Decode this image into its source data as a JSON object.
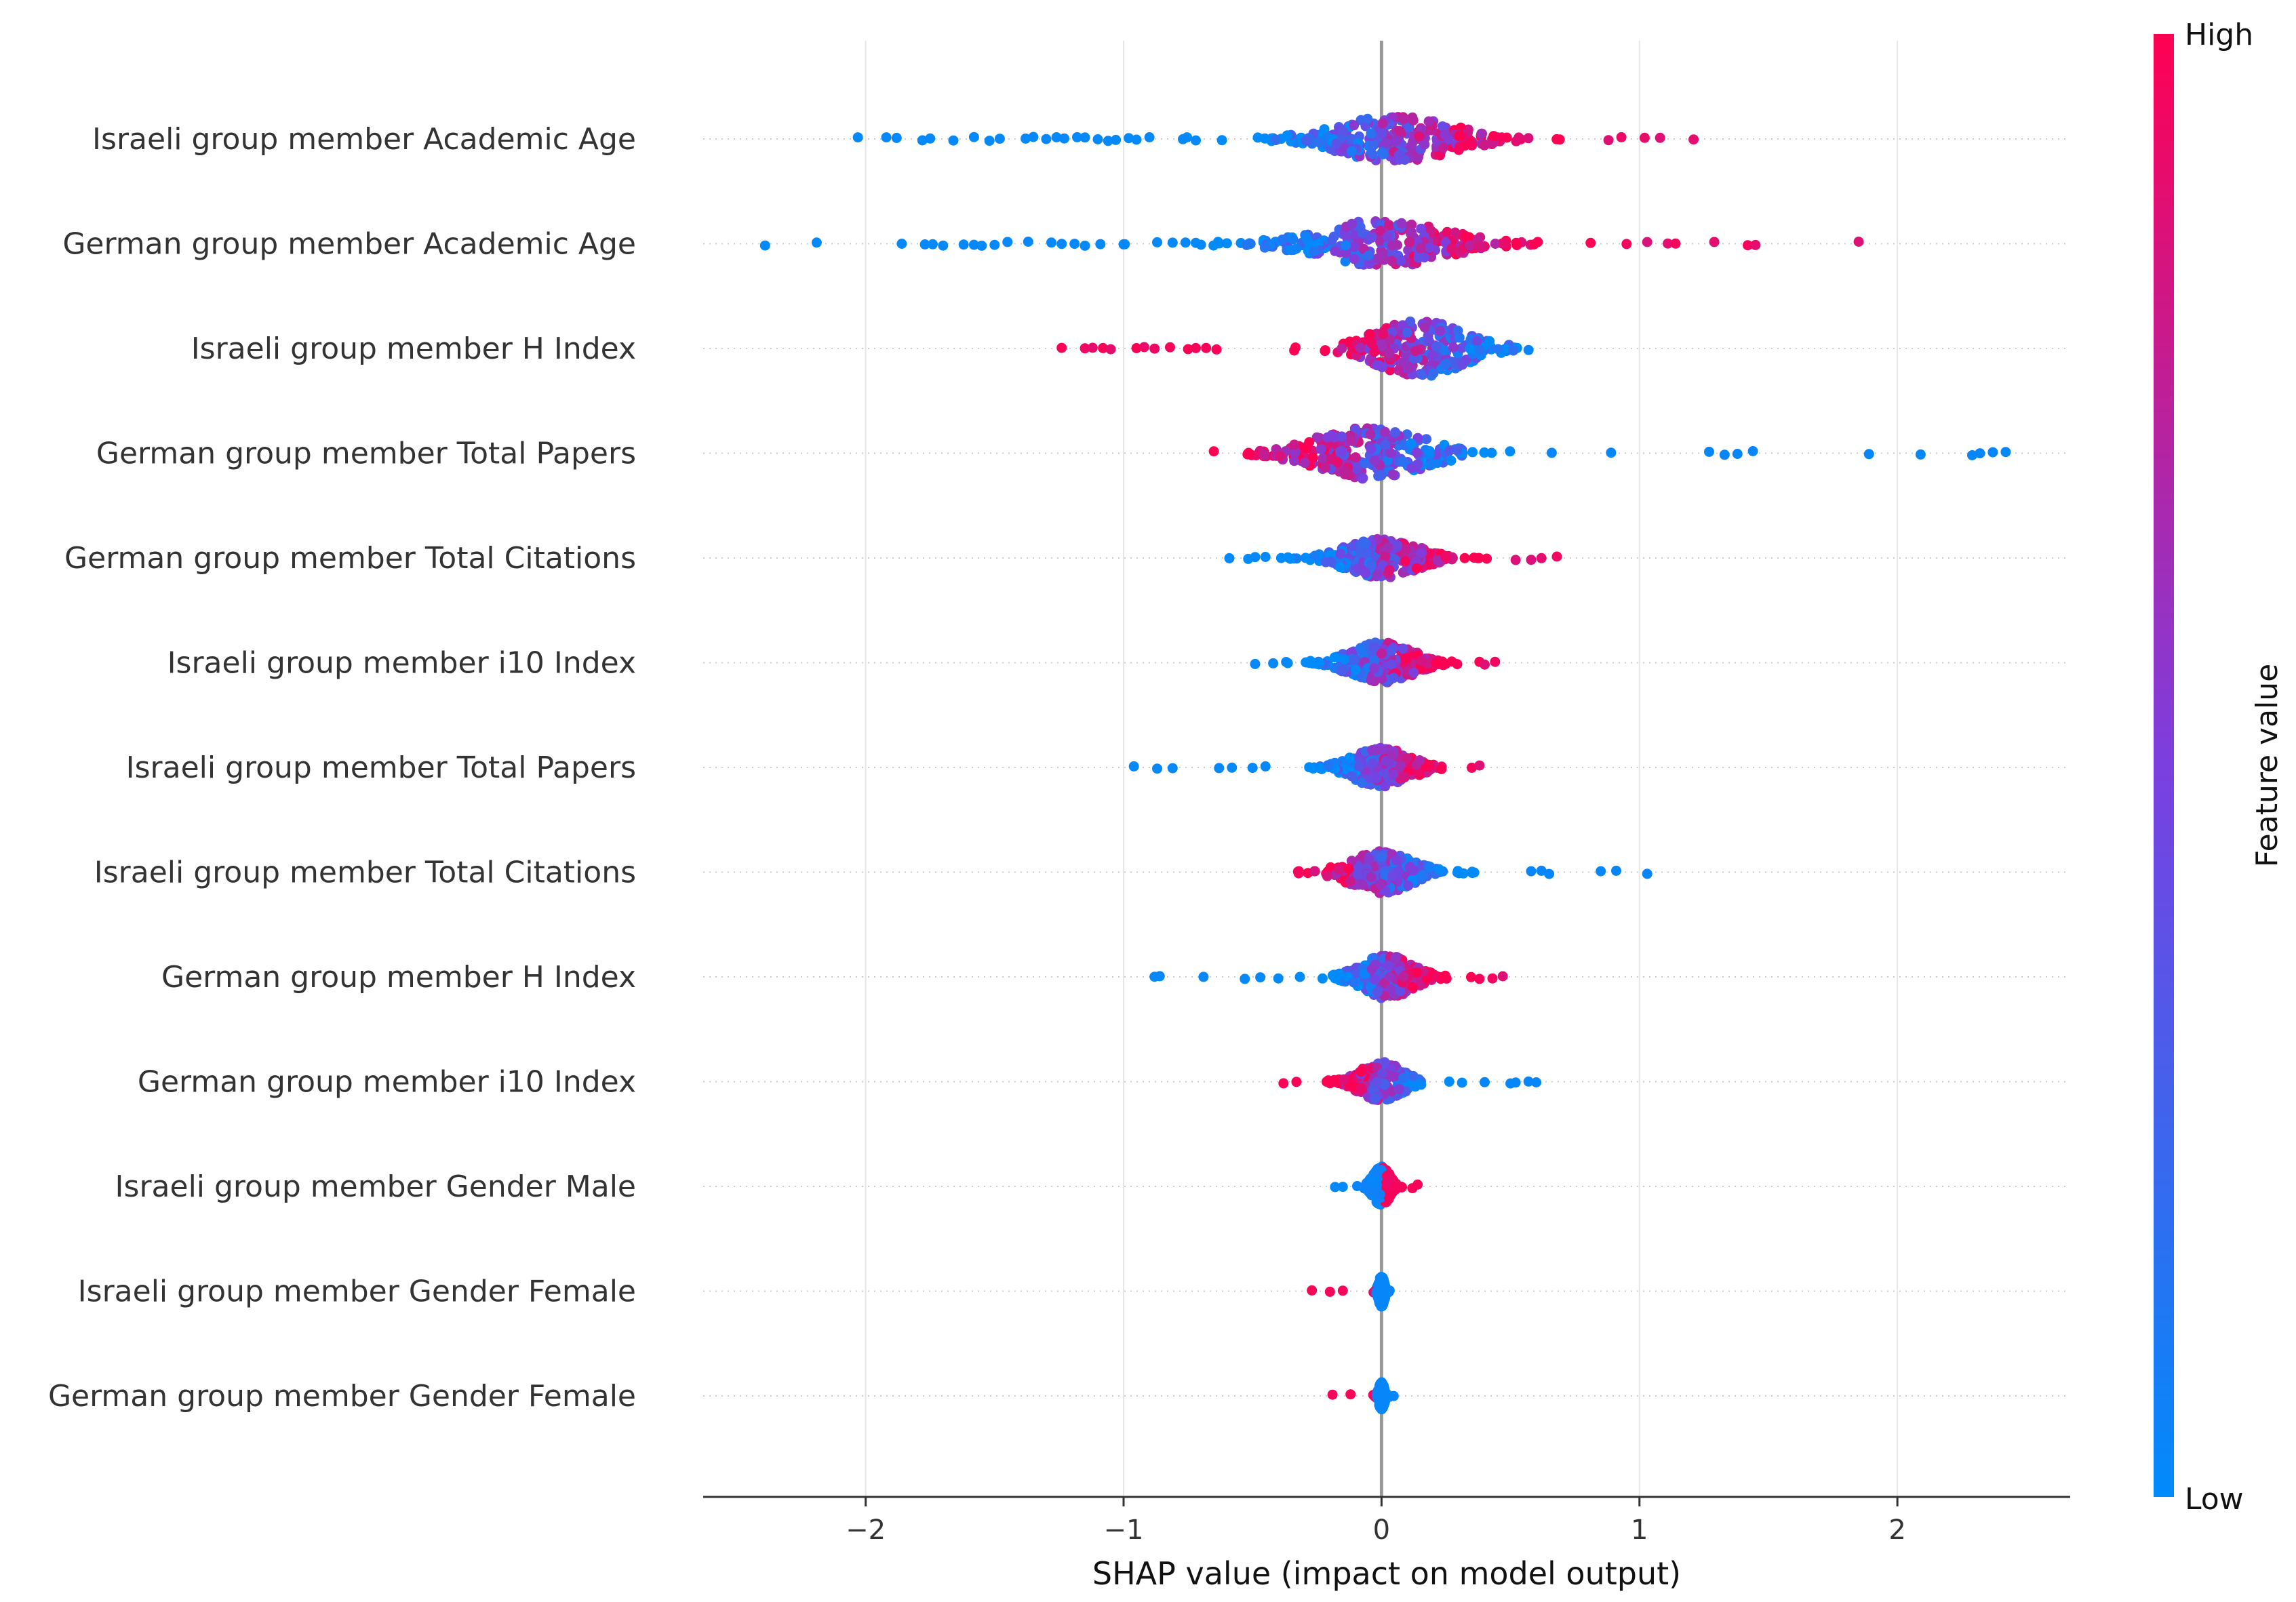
{
  "chart_data": {
    "type": "scatter",
    "subtype": "shap-beeswarm",
    "title": "",
    "xlabel": "SHAP value (impact on model output)",
    "ylabel": "",
    "xlim": [
      -2.63,
      2.67
    ],
    "xticks": [
      -2,
      -1,
      0,
      1,
      2
    ],
    "xtick_labels": [
      "−2",
      "−1",
      "0",
      "1",
      "2"
    ],
    "colorbar": {
      "label": "Feature value",
      "high": "High",
      "low": "Low"
    },
    "colors": {
      "low": "#008bfb",
      "mid": "#7b3fe0",
      "high": "#ff0052",
      "zero_line": "#999999",
      "grid": "#e6e6e6"
    },
    "features": [
      {
        "name": "Israeli group member Academic Age",
        "min": -2.03,
        "max": 1.21,
        "spread": 0.43,
        "center": 0.05,
        "width": 0.42,
        "lowSide": "neg",
        "extremes": [
          -2.03,
          -1.92,
          -1.88,
          -1.78,
          -1.75,
          -1.66,
          -1.58,
          -1.52,
          -1.48,
          -1.38,
          -1.35,
          -1.3,
          -1.26,
          -1.23,
          -1.18,
          -1.15,
          -1.1,
          -1.06,
          -1.03,
          -0.98,
          -0.95,
          -0.9,
          -0.77,
          -0.72,
          0.88,
          0.93,
          1.02,
          1.08,
          1.21
        ]
      },
      {
        "name": "German group member Academic Age",
        "min": -2.39,
        "max": 1.85,
        "spread": 0.45,
        "center": 0.0,
        "width": 0.45,
        "lowSide": "neg",
        "extremes": [
          -2.39,
          -2.19,
          -1.86,
          -1.77,
          -1.74,
          -1.7,
          -1.62,
          -1.58,
          -1.55,
          -1.5,
          -1.45,
          -1.37,
          -1.28,
          -1.24,
          -1.19,
          -1.15,
          -1.09,
          -1.0,
          -0.87,
          -0.81,
          -0.76,
          -0.72,
          -0.7,
          0.95,
          1.03,
          1.11,
          1.14,
          1.29,
          1.42,
          1.45,
          1.85
        ]
      },
      {
        "name": "Israeli group member H Index",
        "min": -1.24,
        "max": 0.57,
        "spread": 0.55,
        "center": 0.15,
        "width": 0.32,
        "lowSide": "pos",
        "extremes": [
          -1.24,
          -1.15,
          -1.12,
          -1.08,
          -1.05,
          -0.95,
          -0.92,
          -0.88,
          -0.82,
          -0.75,
          -0.72,
          -0.68,
          -0.64,
          0.57
        ]
      },
      {
        "name": "German group member Total Papers",
        "min": -0.65,
        "max": 2.42,
        "spread": 0.5,
        "center": -0.05,
        "width": 0.38,
        "lowSide": "pos",
        "extremes": [
          0.66,
          0.89,
          1.27,
          1.33,
          1.38,
          1.44,
          1.89,
          2.09,
          2.29,
          2.32,
          2.37,
          2.42
        ]
      },
      {
        "name": "German group member Total Citations",
        "min": -0.59,
        "max": 0.68,
        "spread": 0.38,
        "center": 0.0,
        "width": 0.25,
        "lowSide": "neg",
        "extremes": [
          -0.59,
          -0.49,
          -0.45,
          0.52,
          0.58,
          0.62,
          0.68
        ]
      },
      {
        "name": "Israeli group member i10 Index",
        "min": -0.49,
        "max": 0.44,
        "spread": 0.4,
        "center": 0.0,
        "width": 0.22,
        "lowSide": "neg",
        "extremes": [
          -0.49,
          -0.42,
          -0.37,
          0.4,
          0.44
        ]
      },
      {
        "name": "Israeli group member Total Papers",
        "min": -0.96,
        "max": 0.38,
        "spread": 0.38,
        "center": 0.0,
        "width": 0.2,
        "lowSide": "neg",
        "extremes": [
          -0.96,
          -0.87,
          -0.81,
          -0.63,
          -0.58,
          -0.5,
          -0.45,
          0.35,
          0.38
        ]
      },
      {
        "name": "Israeli group member Total Citations",
        "min": -0.44,
        "max": 1.03,
        "spread": 0.4,
        "center": 0.0,
        "width": 0.22,
        "lowSide": "pos",
        "extremes": [
          0.58,
          0.62,
          0.65,
          0.85,
          0.91,
          1.03
        ]
      },
      {
        "name": "German group member H Index",
        "min": -0.88,
        "max": 0.47,
        "spread": 0.42,
        "center": 0.02,
        "width": 0.18,
        "lowSide": "neg",
        "extremes": [
          -0.88,
          -0.86,
          -0.69,
          -0.53,
          -0.47,
          -0.4,
          0.38,
          0.43,
          0.47
        ]
      },
      {
        "name": "German group member i10 Index",
        "min": -0.38,
        "max": 0.6,
        "spread": 0.38,
        "center": 0.0,
        "width": 0.15,
        "lowSide": "pos",
        "extremes": [
          -0.38,
          -0.33,
          0.4,
          0.5,
          0.52,
          0.57,
          0.6
        ]
      },
      {
        "name": "Israeli group member Gender Male",
        "min": -0.18,
        "max": 0.14,
        "spread": 0.38,
        "center": 0.0,
        "width": 0.06,
        "lowSide": "neg",
        "extremes": [
          -0.18,
          -0.15,
          0.12,
          0.14
        ],
        "split": "binary-male"
      },
      {
        "name": "Israeli group member Gender Female",
        "min": -0.27,
        "max": 0.09,
        "spread": 0.3,
        "center": 0.0,
        "width": 0.02,
        "lowSide": "pos",
        "extremes": [
          -0.27,
          -0.2,
          -0.15
        ],
        "split": "binary-female"
      },
      {
        "name": "German group member Gender Female",
        "min": -0.19,
        "max": 0.07,
        "spread": 0.26,
        "center": 0.0,
        "width": 0.02,
        "lowSide": "pos",
        "extremes": [
          -0.19,
          -0.12
        ],
        "split": "binary-female"
      }
    ]
  }
}
